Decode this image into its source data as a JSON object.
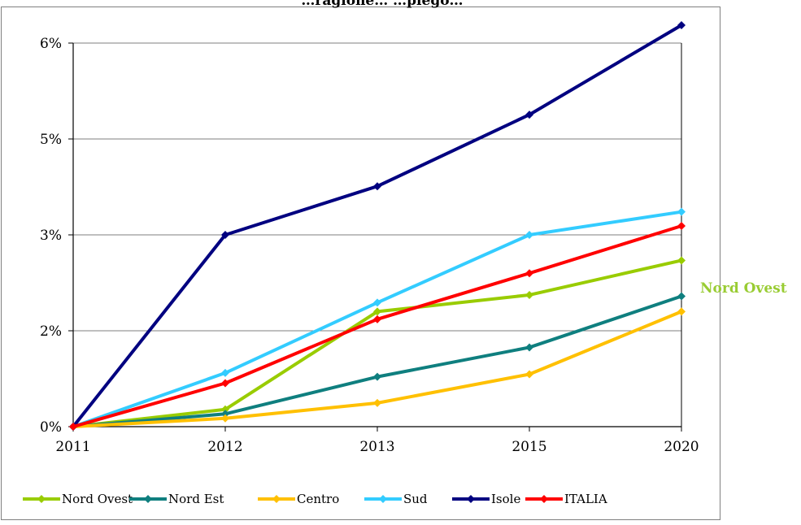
{
  "chart_data": {
    "type": "line",
    "title": "…ragione… …piego…",
    "categories": [
      "2011",
      "2012",
      "2013",
      "2015",
      "2020"
    ],
    "y_ticks": [
      "0%",
      "2%",
      "3%",
      "5%",
      "6%"
    ],
    "ylim": [
      0,
      6
    ],
    "grid": true,
    "legend_position": "bottom",
    "series": [
      {
        "name": "Nord Ovest",
        "color": "#99cc00",
        "values": [
          0,
          0.27,
          1.8,
          2.06,
          2.6
        ]
      },
      {
        "name": "Nord Est",
        "color": "#0f7f7f",
        "values": [
          0,
          0.2,
          0.78,
          1.24,
          2.04
        ]
      },
      {
        "name": "Centro",
        "color": "#ffc000",
        "values": [
          0,
          0.13,
          0.37,
          0.82,
          1.8
        ]
      },
      {
        "name": "Sud",
        "color": "#33ccff",
        "values": [
          0,
          0.84,
          1.94,
          3.0,
          3.36
        ]
      },
      {
        "name": "Isole",
        "color": "#000080",
        "values": [
          0,
          3.0,
          3.76,
          4.88,
          6.28
        ]
      },
      {
        "name": "ITALIA",
        "color": "#ff0000",
        "values": [
          0,
          0.68,
          1.68,
          2.4,
          3.14
        ]
      }
    ],
    "annotation": {
      "text": "Nord Ovest",
      "color": "#99cc33"
    }
  }
}
